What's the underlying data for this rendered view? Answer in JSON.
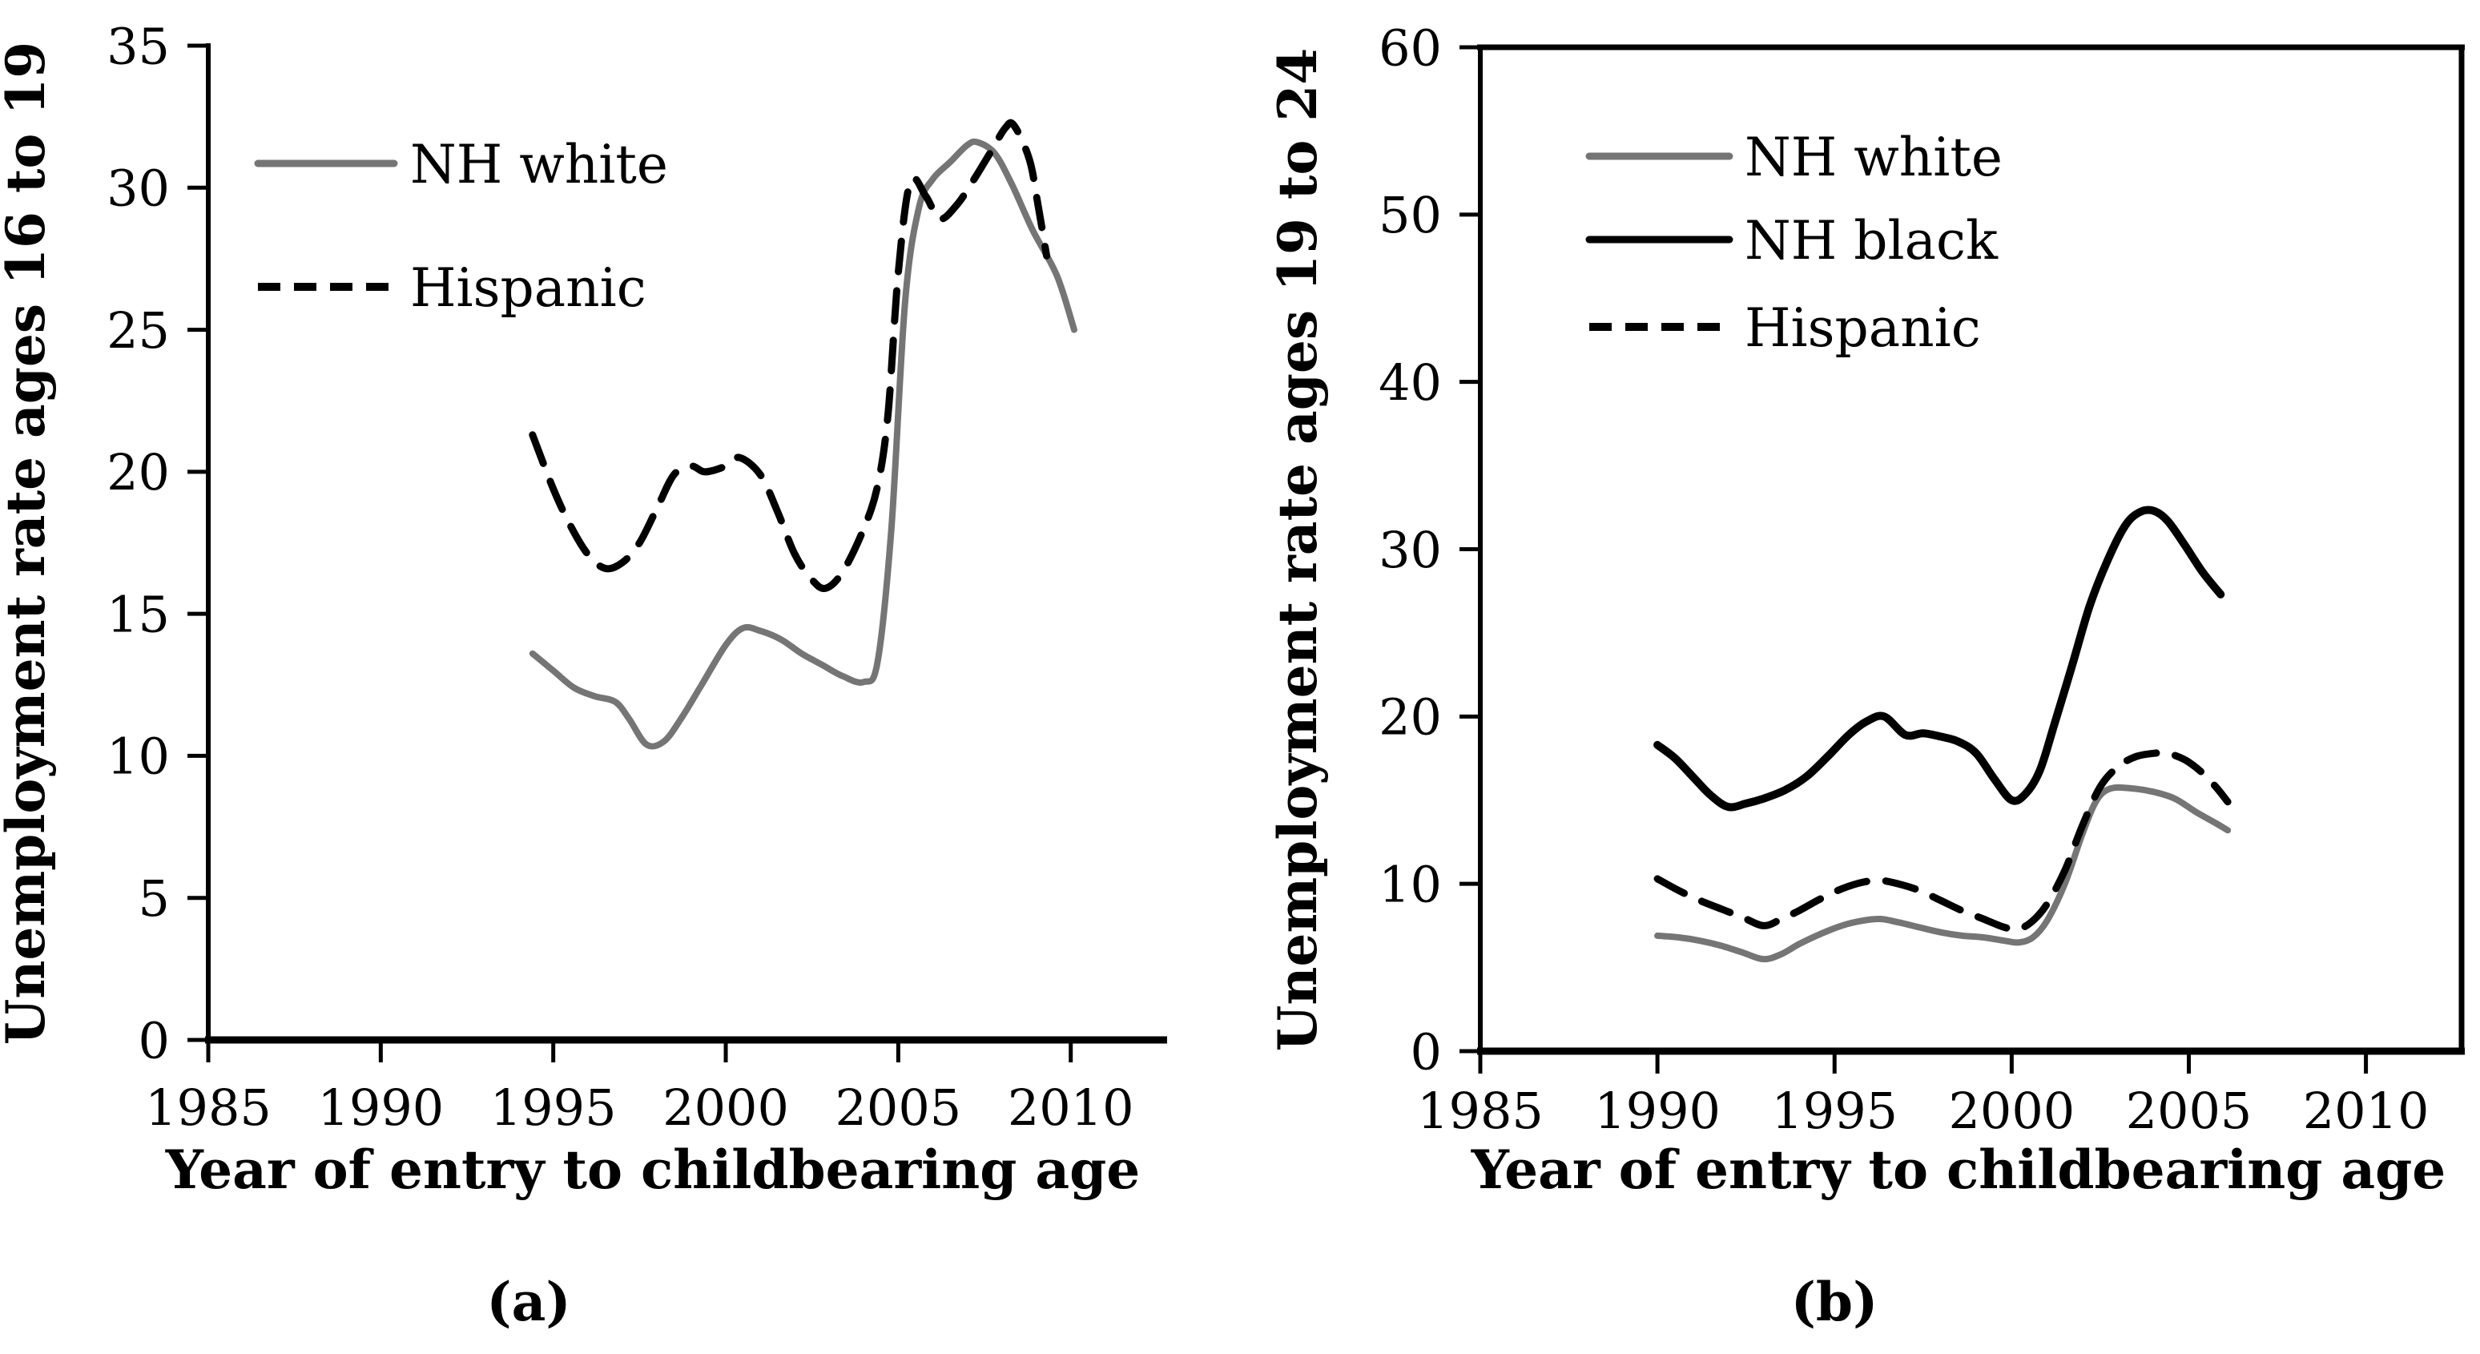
{
  "figure_title": "",
  "chart_data": [
    {
      "id": "a",
      "type": "line",
      "caption": "(a)",
      "xlabel": "Year of entry to childbearing age",
      "ylabel": "Unemployment rate ages 16 to 19",
      "xlim": [
        1985,
        2012.7
      ],
      "ylim": [
        0,
        35
      ],
      "xticks": [
        1985,
        1990,
        1995,
        2000,
        2005,
        2010
      ],
      "yticks": [
        0,
        5,
        10,
        15,
        20,
        25,
        30,
        35
      ],
      "grid": false,
      "frame": "open-axes",
      "legend_position": "upper-left-inside",
      "legend": [
        {
          "label": "NH white",
          "color": "#757575",
          "dash": false
        },
        {
          "label": "Hispanic",
          "color": "#000000",
          "dash": true
        }
      ],
      "series": [
        {
          "name": "NH white",
          "color": "#757575",
          "dash": false,
          "width": 8,
          "points": [
            [
              1994.4,
              13.6
            ],
            [
              1995,
              13.0
            ],
            [
              1995.6,
              12.4
            ],
            [
              1996.2,
              12.1
            ],
            [
              1996.8,
              11.9
            ],
            [
              1997.2,
              11.3
            ],
            [
              1997.7,
              10.4
            ],
            [
              1998.2,
              10.5
            ],
            [
              1998.7,
              11.3
            ],
            [
              1999.3,
              12.5
            ],
            [
              2000,
              13.9
            ],
            [
              2000.5,
              14.5
            ],
            [
              2001,
              14.4
            ],
            [
              2001.6,
              14.1
            ],
            [
              2002.2,
              13.6
            ],
            [
              2002.8,
              13.2
            ],
            [
              2003.4,
              12.8
            ],
            [
              2004,
              12.6
            ],
            [
              2004.4,
              13.3
            ],
            [
              2004.8,
              18.0
            ],
            [
              2005.2,
              26.0
            ],
            [
              2005.6,
              29.3
            ],
            [
              2006,
              30.3
            ],
            [
              2006.5,
              30.9
            ],
            [
              2007,
              31.5
            ],
            [
              2007.3,
              31.6
            ],
            [
              2007.8,
              31.2
            ],
            [
              2008.3,
              30.1
            ],
            [
              2008.9,
              28.5
            ],
            [
              2009.6,
              26.9
            ],
            [
              2010.1,
              25.0
            ]
          ]
        },
        {
          "name": "Hispanic",
          "color": "#000000",
          "dash": true,
          "width": 9,
          "points": [
            [
              1994.4,
              21.3
            ],
            [
              1995,
              19.4
            ],
            [
              1995.5,
              18.1
            ],
            [
              1996,
              17.1
            ],
            [
              1996.5,
              16.6
            ],
            [
              1997,
              16.8
            ],
            [
              1997.5,
              17.5
            ],
            [
              1998,
              18.7
            ],
            [
              1998.5,
              19.9
            ],
            [
              1999,
              20.2
            ],
            [
              1999.4,
              20.0
            ],
            [
              2000,
              20.2
            ],
            [
              2000.4,
              20.5
            ],
            [
              2001,
              19.9
            ],
            [
              2001.5,
              18.6
            ],
            [
              2002,
              17.1
            ],
            [
              2002.5,
              16.2
            ],
            [
              2002.9,
              15.9
            ],
            [
              2003.4,
              16.5
            ],
            [
              2004,
              18.0
            ],
            [
              2004.4,
              19.5
            ],
            [
              2004.7,
              22.0
            ],
            [
              2005.0,
              27.0
            ],
            [
              2005.35,
              30.2
            ],
            [
              2005.8,
              29.7
            ],
            [
              2006.2,
              28.9
            ],
            [
              2006.7,
              29.4
            ],
            [
              2007.2,
              30.3
            ],
            [
              2007.7,
              31.3
            ],
            [
              2008.1,
              32.1
            ],
            [
              2008.35,
              32.2
            ],
            [
              2008.8,
              31.0
            ],
            [
              2009.05,
              29.4
            ],
            [
              2009.3,
              27.6
            ]
          ]
        }
      ]
    },
    {
      "id": "b",
      "type": "line",
      "caption": "(b)",
      "xlabel": "Year of entry to childbearing age",
      "ylabel": "Unemployment rate ages 19 to 24",
      "xlim": [
        1985,
        2012.7
      ],
      "ylim": [
        0,
        60
      ],
      "xticks": [
        1985,
        1990,
        1995,
        2000,
        2005,
        2010
      ],
      "yticks": [
        0,
        10,
        20,
        30,
        40,
        50,
        60
      ],
      "grid": false,
      "frame": "full-box",
      "legend_position": "upper-left-inside",
      "legend": [
        {
          "label": "NH white",
          "color": "#757575",
          "dash": false
        },
        {
          "label": "NH black",
          "color": "#000000",
          "dash": false
        },
        {
          "label": "Hispanic",
          "color": "#000000",
          "dash": true
        }
      ],
      "series": [
        {
          "name": "NH white",
          "color": "#757575",
          "dash": false,
          "width": 8,
          "points": [
            [
              1990,
              6.9
            ],
            [
              1990.6,
              6.8
            ],
            [
              1991.2,
              6.6
            ],
            [
              1991.8,
              6.3
            ],
            [
              1992.4,
              5.9
            ],
            [
              1993,
              5.5
            ],
            [
              1993.5,
              5.8
            ],
            [
              1994,
              6.4
            ],
            [
              1994.6,
              7.0
            ],
            [
              1995.2,
              7.5
            ],
            [
              1995.8,
              7.8
            ],
            [
              1996.3,
              7.9
            ],
            [
              1996.8,
              7.7
            ],
            [
              1997.4,
              7.4
            ],
            [
              1998,
              7.1
            ],
            [
              1998.6,
              6.9
            ],
            [
              1999.2,
              6.8
            ],
            [
              1999.8,
              6.6
            ],
            [
              2000.2,
              6.5
            ],
            [
              2000.6,
              6.8
            ],
            [
              2001,
              7.8
            ],
            [
              2001.5,
              10.0
            ],
            [
              2002,
              13.0
            ],
            [
              2002.4,
              15.0
            ],
            [
              2002.8,
              15.7
            ],
            [
              2003.4,
              15.7
            ],
            [
              2004,
              15.5
            ],
            [
              2004.6,
              15.1
            ],
            [
              2005.2,
              14.3
            ],
            [
              2005.7,
              13.7
            ],
            [
              2006.1,
              13.2
            ]
          ]
        },
        {
          "name": "Hispanic",
          "color": "#000000",
          "dash": true,
          "width": 9,
          "points": [
            [
              1990,
              10.3
            ],
            [
              1990.6,
              9.6
            ],
            [
              1991.2,
              9.0
            ],
            [
              1991.8,
              8.5
            ],
            [
              1992.4,
              8.0
            ],
            [
              1993,
              7.5
            ],
            [
              1993.5,
              7.9
            ],
            [
              1994,
              8.4
            ],
            [
              1994.6,
              9.1
            ],
            [
              1995.2,
              9.7
            ],
            [
              1995.8,
              10.1
            ],
            [
              1996.3,
              10.2
            ],
            [
              1996.8,
              10.0
            ],
            [
              1997.4,
              9.6
            ],
            [
              1998,
              9.0
            ],
            [
              1998.6,
              8.4
            ],
            [
              1999.2,
              7.9
            ],
            [
              1999.8,
              7.4
            ],
            [
              2000.2,
              7.3
            ],
            [
              2000.6,
              7.8
            ],
            [
              2001,
              8.8
            ],
            [
              2001.5,
              10.8
            ],
            [
              2002,
              13.5
            ],
            [
              2002.5,
              15.8
            ],
            [
              2003,
              17.0
            ],
            [
              2003.5,
              17.6
            ],
            [
              2004,
              17.8
            ],
            [
              2004.4,
              17.8
            ],
            [
              2004.9,
              17.4
            ],
            [
              2005.4,
              16.6
            ],
            [
              2005.8,
              15.7
            ],
            [
              2006.1,
              14.9
            ]
          ]
        },
        {
          "name": "NH black",
          "color": "#000000",
          "dash": false,
          "width": 10,
          "points": [
            [
              1990,
              18.3
            ],
            [
              1990.5,
              17.5
            ],
            [
              1991,
              16.4
            ],
            [
              1991.5,
              15.3
            ],
            [
              1992,
              14.6
            ],
            [
              1992.5,
              14.8
            ],
            [
              1993,
              15.1
            ],
            [
              1993.6,
              15.6
            ],
            [
              1994.2,
              16.4
            ],
            [
              1994.8,
              17.6
            ],
            [
              1995.4,
              18.9
            ],
            [
              1995.9,
              19.7
            ],
            [
              1996.4,
              20.0
            ],
            [
              1997,
              18.9
            ],
            [
              1997.5,
              19.0
            ],
            [
              1998,
              18.8
            ],
            [
              1998.5,
              18.5
            ],
            [
              1999,
              17.8
            ],
            [
              1999.5,
              16.3
            ],
            [
              2000,
              15.0
            ],
            [
              2000.4,
              15.4
            ],
            [
              2000.8,
              16.8
            ],
            [
              2001.2,
              19.5
            ],
            [
              2001.7,
              23.0
            ],
            [
              2002.2,
              26.6
            ],
            [
              2002.7,
              29.3
            ],
            [
              2003.2,
              31.4
            ],
            [
              2003.6,
              32.2
            ],
            [
              2004,
              32.3
            ],
            [
              2004.4,
              31.7
            ],
            [
              2004.9,
              30.2
            ],
            [
              2005.4,
              28.6
            ],
            [
              2005.9,
              27.3
            ]
          ]
        }
      ]
    }
  ]
}
